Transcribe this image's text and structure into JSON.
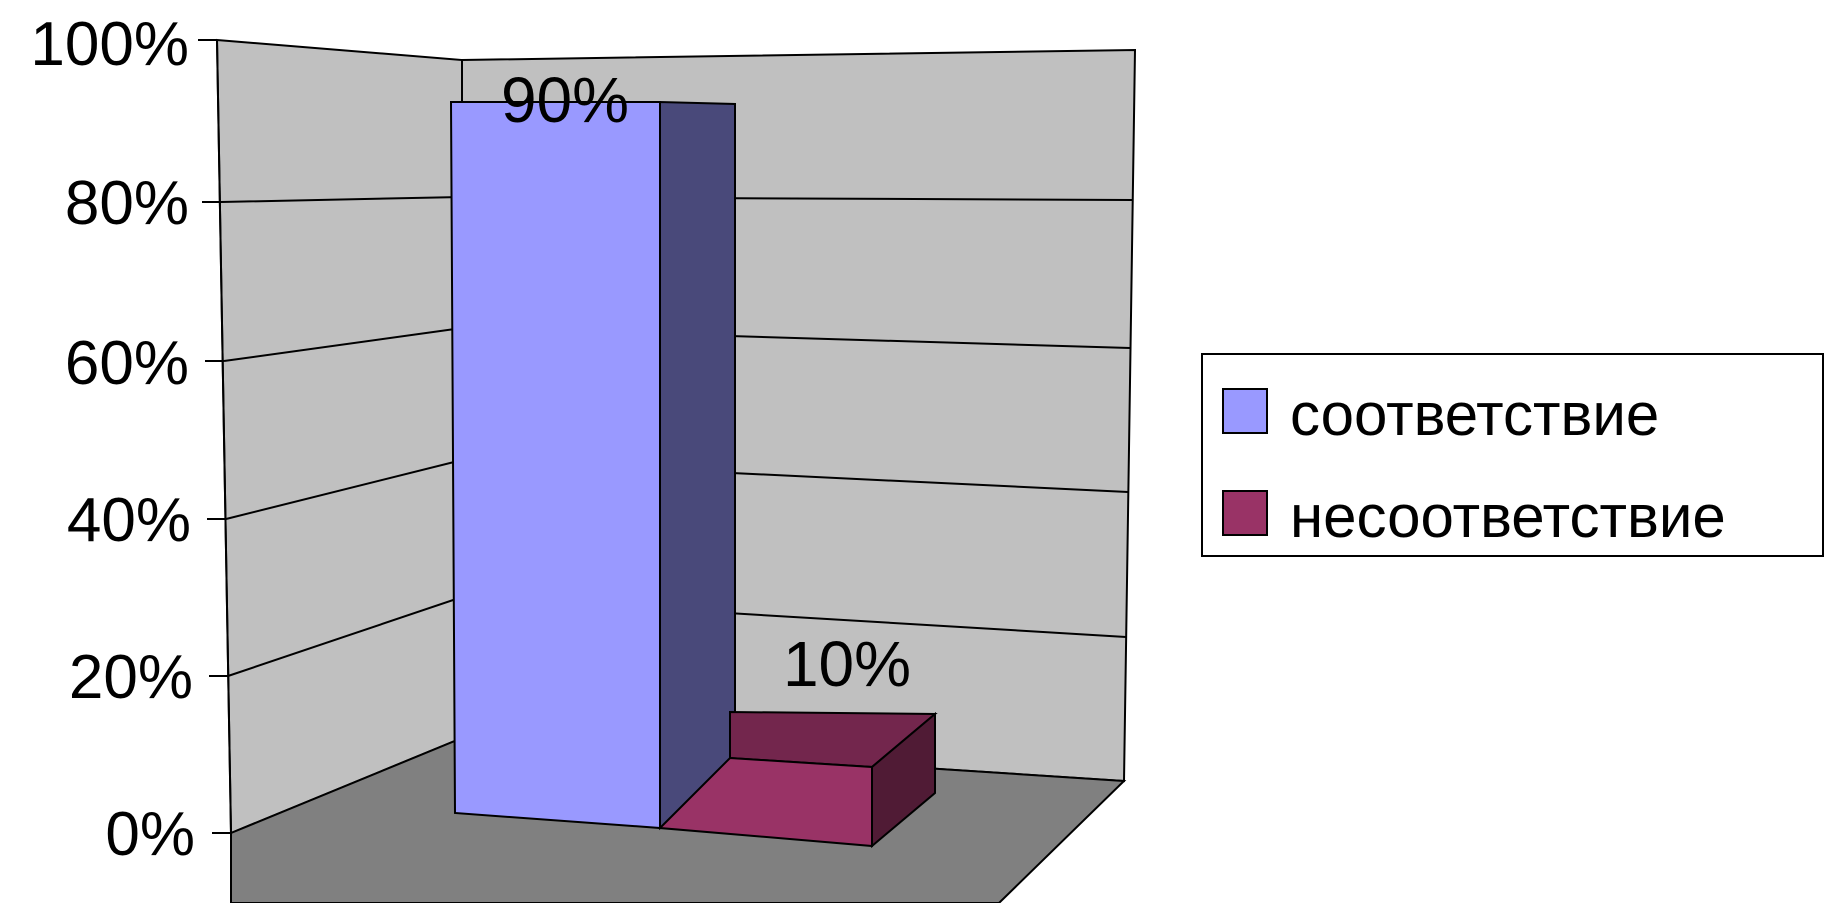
{
  "chart_data": {
    "type": "bar",
    "title": "",
    "xlabel": "",
    "ylabel": "",
    "ylim": [
      0,
      100
    ],
    "y_ticks": [
      "0%",
      "20%",
      "40%",
      "60%",
      "80%",
      "100%"
    ],
    "grid": true,
    "style": "3d",
    "legend_position": "right",
    "series": [
      {
        "name": "соответствие",
        "value": 90,
        "label": "90%",
        "color": "#9999FF"
      },
      {
        "name": "несоответствие",
        "value": 10,
        "label": "10%",
        "color": "#993366"
      }
    ]
  }
}
